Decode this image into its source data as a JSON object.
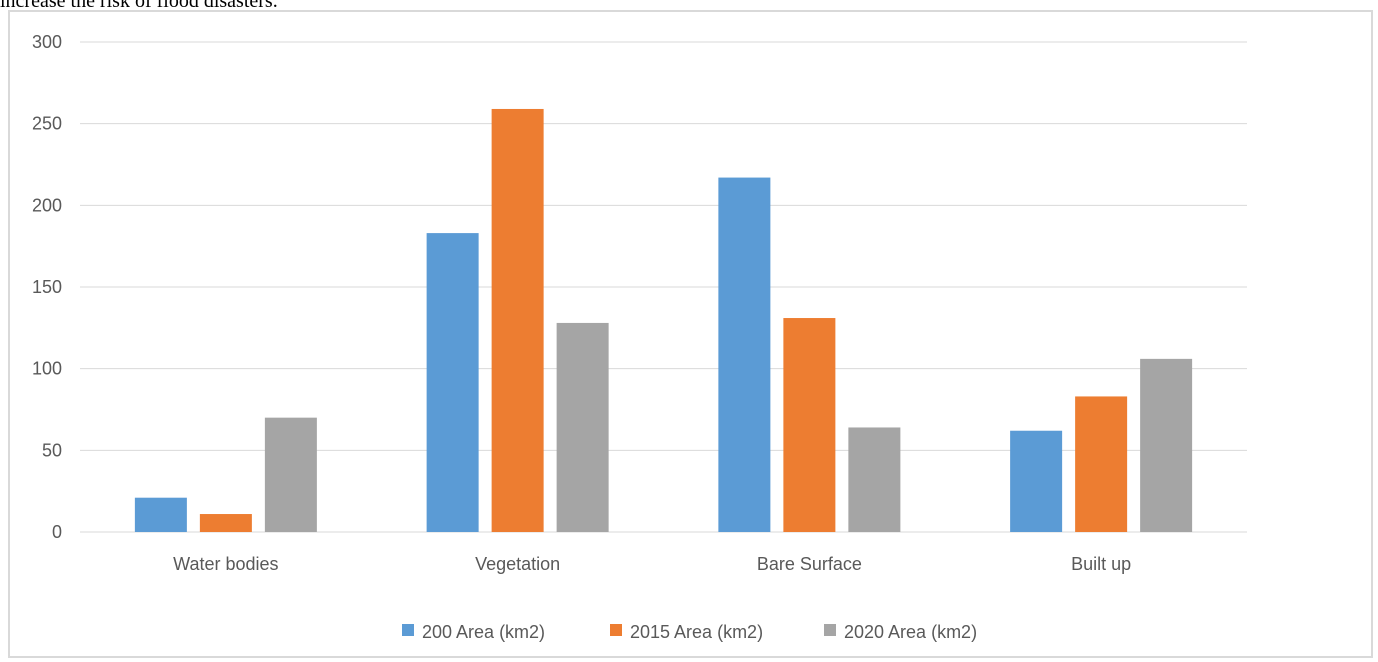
{
  "page": {
    "caption_fragment": "increase the risk of flood disasters."
  },
  "chart_data": {
    "type": "bar",
    "title": "",
    "xlabel": "",
    "ylabel": "",
    "ylim": [
      0,
      300
    ],
    "yticks": [
      0,
      50,
      100,
      150,
      200,
      250,
      300
    ],
    "grid": true,
    "legend_position": "bottom",
    "categories": [
      "Water bodies",
      "Vegetation",
      "Bare Surface",
      "Built up"
    ],
    "series": [
      {
        "name": "200 Area (km2)",
        "color": "#5b9bd5",
        "values": [
          21,
          183,
          217,
          62
        ]
      },
      {
        "name": "2015 Area (km2)",
        "color": "#ed7d31",
        "values": [
          11,
          259,
          131,
          83
        ]
      },
      {
        "name": "2020 Area (km2)",
        "color": "#a5a5a5",
        "values": [
          70,
          128,
          64,
          106
        ]
      }
    ]
  }
}
